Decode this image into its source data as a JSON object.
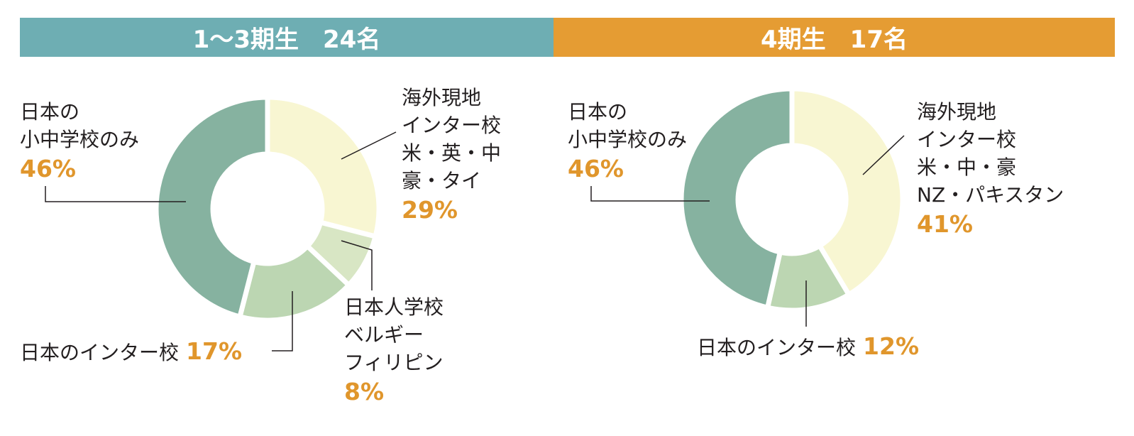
{
  "colors": {
    "banner_left": "#6eaeb3",
    "banner_right": "#e59c33",
    "pct": "#e0962c",
    "leader": "#231f20"
  },
  "chart_data": [
    {
      "type": "pie",
      "title": "1〜3期生　24名",
      "slices": [
        {
          "label": [
            "海外現地",
            "インター校",
            "米・英・中",
            "豪・タイ"
          ],
          "value": 29,
          "display": "29%",
          "color": "#f8f6d2"
        },
        {
          "label": [
            "日本人学校",
            "ベルギー",
            "フィリピン"
          ],
          "value": 8,
          "display": "8%",
          "color": "#d8e6c4"
        },
        {
          "label": [
            "日本のインター校"
          ],
          "value": 17,
          "display": "17%",
          "color": "#bcd6b2"
        },
        {
          "label": [
            "日本の",
            "小中学校のみ"
          ],
          "value": 46,
          "display": "46%",
          "color": "#86b2a0"
        }
      ]
    },
    {
      "type": "pie",
      "title": "4期生　17名",
      "slices": [
        {
          "label": [
            "海外現地",
            "インター校",
            "米・中・豪",
            "NZ・パキスタン"
          ],
          "value": 41,
          "display": "41%",
          "color": "#f8f6d2"
        },
        {
          "label": [
            "日本のインター校"
          ],
          "value": 12,
          "display": "12%",
          "color": "#bcd6b2"
        },
        {
          "label": [
            "日本の",
            "小中学校のみ"
          ],
          "value": 46,
          "display": "46%",
          "color": "#86b2a0"
        }
      ]
    }
  ]
}
